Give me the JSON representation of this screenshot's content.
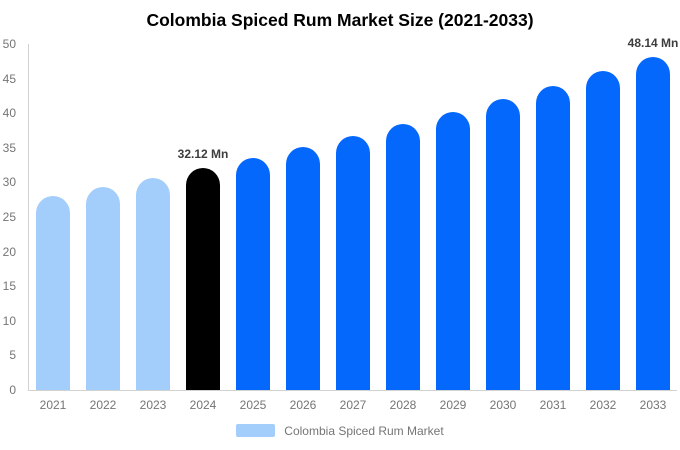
{
  "chart_data": {
    "type": "bar",
    "title": "Colombia Spiced Rum Market Size (2021-2033)",
    "unit": "Mn",
    "categories": [
      "2021",
      "2022",
      "2023",
      "2024",
      "2025",
      "2026",
      "2027",
      "2028",
      "2029",
      "2030",
      "2031",
      "2032",
      "2033"
    ],
    "values": [
      28.07,
      29.36,
      30.71,
      32.12,
      33.6,
      35.14,
      36.76,
      38.45,
      40.22,
      42.07,
      44.0,
      46.03,
      48.14
    ],
    "point_colors": [
      "#a3cdfa",
      "#a3cdfa",
      "#a3cdfa",
      "#000000",
      "#0568fd",
      "#0568fd",
      "#0568fd",
      "#0568fd",
      "#0568fd",
      "#0568fd",
      "#0568fd",
      "#0568fd",
      "#0568fd"
    ],
    "annotations": [
      {
        "index": 3,
        "label": "32.12 Mn"
      },
      {
        "index": 12,
        "label": "48.14 Mn"
      }
    ],
    "ylim": [
      0,
      50
    ],
    "yticks": [
      "0",
      "5",
      "10",
      "15",
      "20",
      "25",
      "30",
      "35",
      "40",
      "45",
      "50"
    ],
    "grid": false,
    "legend_position": "bottom"
  },
  "legend": {
    "label": "Colombia Spiced Rum Market",
    "swatch_color": "#a3cdfa"
  },
  "colors": {
    "historical_bar": "#a3cdfa",
    "base_year_bar": "#000000",
    "forecast_bar": "#0568fd",
    "axis_line": "#d2d2d2",
    "tick_text": "#757575",
    "annotation_text": "#3d3d3d",
    "title_text": "#000000",
    "background": "#ffffff"
  }
}
